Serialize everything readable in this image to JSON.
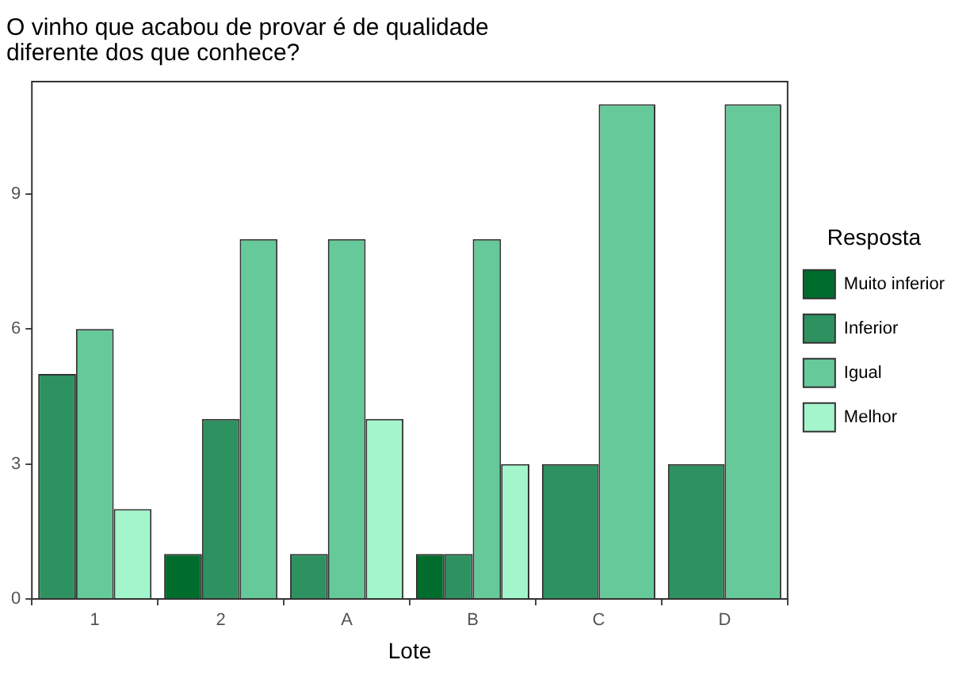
{
  "chart_data": {
    "type": "bar",
    "title": "O vinho que acabou de provar é de qualidade\ndiferente dos que conhece?",
    "xlabel": "Lote",
    "legend_title": "Resposta",
    "categories": [
      "1",
      "2",
      "A",
      "B",
      "C",
      "D"
    ],
    "series": [
      {
        "name": "Muito inferior",
        "color": "#006d2c",
        "values": [
          null,
          1,
          null,
          1,
          null,
          null
        ]
      },
      {
        "name": "Inferior",
        "color": "#2e9160",
        "values": [
          5,
          4,
          1,
          1,
          3,
          3
        ]
      },
      {
        "name": "Igual",
        "color": "#66c99a",
        "values": [
          6,
          8,
          8,
          8,
          11,
          11
        ]
      },
      {
        "name": "Melhor",
        "color": "#a3f5cc",
        "values": [
          2,
          null,
          4,
          3,
          null,
          null
        ]
      }
    ],
    "ylim": [
      0,
      11.5
    ],
    "yticks": [
      0,
      3,
      6,
      9
    ],
    "grid": false,
    "legend": "right"
  }
}
